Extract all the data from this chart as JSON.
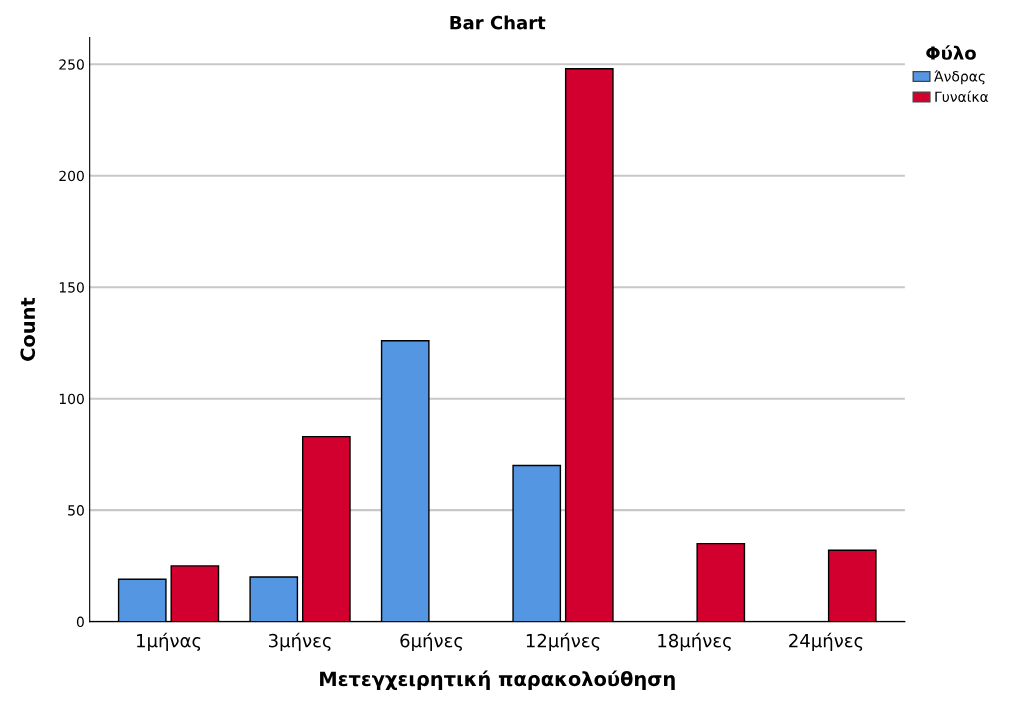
{
  "chart_data": {
    "type": "bar",
    "title": "Bar Chart",
    "xlabel": "Μετεγχειρητική παρακολούθηση",
    "ylabel": "Count",
    "legend_title": "Φύλο",
    "categories": [
      "1μήνας",
      "3μήνες",
      "6μήνες",
      "12μήνες",
      "18μήνες",
      "24μήνες"
    ],
    "series": [
      {
        "name": "Άνδρας",
        "color": "#5596e3",
        "values": [
          19,
          20,
          126,
          70,
          null,
          null
        ]
      },
      {
        "name": "Γυναίκα",
        "color": "#d2002f",
        "values": [
          25,
          83,
          null,
          248,
          35,
          32
        ]
      }
    ],
    "ylim": [
      0,
      262
    ],
    "yticks": [
      0,
      50,
      100,
      150,
      200,
      250
    ],
    "grid": "y",
    "legend": "top right"
  }
}
